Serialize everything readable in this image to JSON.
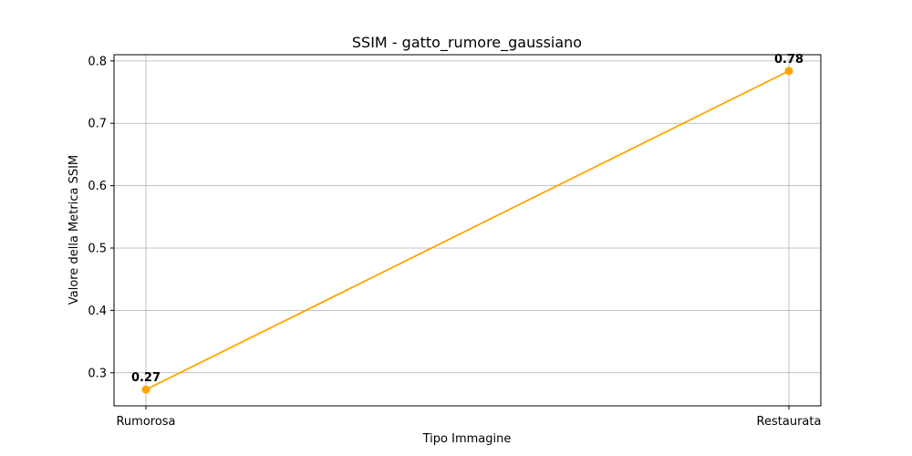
{
  "chart_data": {
    "type": "line",
    "title": "SSIM - gatto_rumore_gaussiano",
    "xlabel": "Tipo Immagine",
    "ylabel": "Valore della Metrica SSIM",
    "categories": [
      "Rumorosa",
      "Restaurata"
    ],
    "values": [
      0.273,
      0.784
    ],
    "data_labels": [
      "0.27",
      "0.78"
    ],
    "yticks": [
      0.3,
      0.4,
      0.5,
      0.6,
      0.7,
      0.8
    ],
    "ytick_labels": [
      "0.3",
      "0.4",
      "0.5",
      "0.6",
      "0.7",
      "0.8"
    ],
    "ylim": [
      0.247,
      0.81
    ],
    "grid": true,
    "line_color": "#ffa500"
  }
}
